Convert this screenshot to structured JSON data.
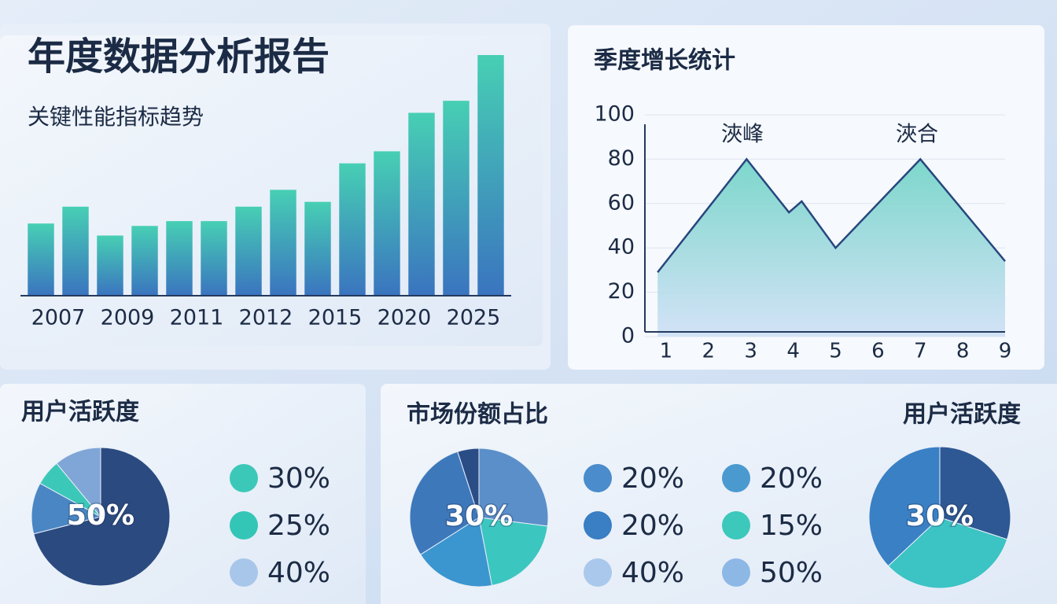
{
  "chart_data": [
    {
      "type": "bar",
      "title": "年度数据分析报告",
      "subtitle": "关键性能指标趋势",
      "categories": [
        "2007",
        null,
        "2009",
        null,
        "2011",
        null,
        "2012",
        null,
        "2015",
        null,
        "2020",
        null,
        "2025",
        null
      ],
      "values": [
        30,
        37,
        25,
        29,
        31,
        31,
        37,
        44,
        39,
        55,
        60,
        76,
        81,
        100
      ],
      "ylim": [
        0,
        100
      ],
      "colors": [
        "#47cfb4",
        "#3a74bf"
      ]
    },
    {
      "type": "area",
      "title": "季度增长统计",
      "x": [
        0.8,
        2.9,
        3.9,
        4.2,
        5,
        7,
        9
      ],
      "values": [
        29,
        80,
        56,
        61,
        40,
        80,
        34
      ],
      "xlim": [
        0.5,
        9
      ],
      "xticks": [
        1,
        2,
        3,
        4,
        5,
        6,
        7,
        8,
        9
      ],
      "ylim": [
        0,
        100
      ],
      "yticks": [
        0,
        20,
        40,
        60,
        80,
        100
      ],
      "grid": true,
      "annotations": [
        "浹峰",
        "浹合"
      ],
      "color": "#27477e",
      "fill_colors": [
        "#6fd3c6",
        "#cfe0f6"
      ]
    },
    {
      "type": "pie",
      "title": "用户活跃度",
      "center_label": "50%",
      "values": [
        71,
        12,
        6,
        11
      ],
      "colors": [
        "#2b4a80",
        "#4a86c4",
        "#3cc8b8",
        "#7fa6d6"
      ],
      "legend": [
        {
          "label": "30%",
          "color": "#3cc8b8"
        },
        {
          "label": "25%",
          "color": "#33c6b6"
        },
        {
          "label": "40%",
          "color": "#a8c6ea"
        }
      ]
    },
    {
      "type": "pie",
      "title": "市场份额占比",
      "center_label": "30%",
      "values": [
        27,
        20,
        19,
        29,
        5
      ],
      "colors": [
        "#5b8fc9",
        "#3cc6c0",
        "#3b95cf",
        "#3d78bb",
        "#2b4d86"
      ],
      "legend": [
        {
          "label": "20%",
          "color": "#4a8ccc"
        },
        {
          "label": "20%",
          "color": "#3a7ec4"
        },
        {
          "label": "40%",
          "color": "#a9c8ec"
        },
        {
          "label": "20%",
          "color": "#4a9ad0"
        },
        {
          "label": "15%",
          "color": "#3cc8bb"
        },
        {
          "label": "50%",
          "color": "#8db8e6"
        }
      ]
    },
    {
      "type": "pie",
      "title": "用户活跃度",
      "center_label": "30%",
      "values": [
        30,
        33,
        37
      ],
      "colors": [
        "#2e5893",
        "#3cc3c4",
        "#3a80c4"
      ]
    }
  ]
}
